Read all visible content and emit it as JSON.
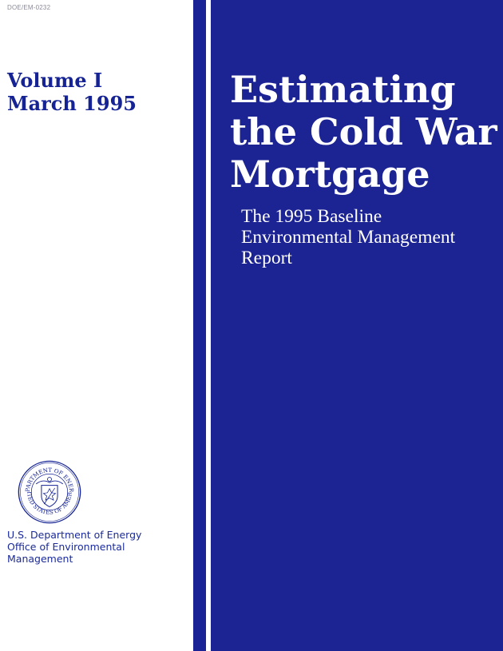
{
  "document": {
    "doc_number": "DOE/EM-0232",
    "volume": "Volume I",
    "date": "March 1995",
    "title_lines": [
      "Estimating",
      "the Cold War",
      "Mortgage"
    ],
    "subtitle_lines": [
      "The 1995 Baseline",
      "Environmental Management",
      "Report"
    ],
    "agency_lines": [
      "U.S. Department of Energy",
      "Office of Environmental",
      "Management"
    ],
    "seal": {
      "top_text": "DEPARTMENT OF ENERGY",
      "bottom_text": "UNITED STATES OF AMERICA"
    }
  },
  "colors": {
    "primary_blue": "#1c2392",
    "text_blue": "#152394",
    "white": "#ffffff"
  }
}
